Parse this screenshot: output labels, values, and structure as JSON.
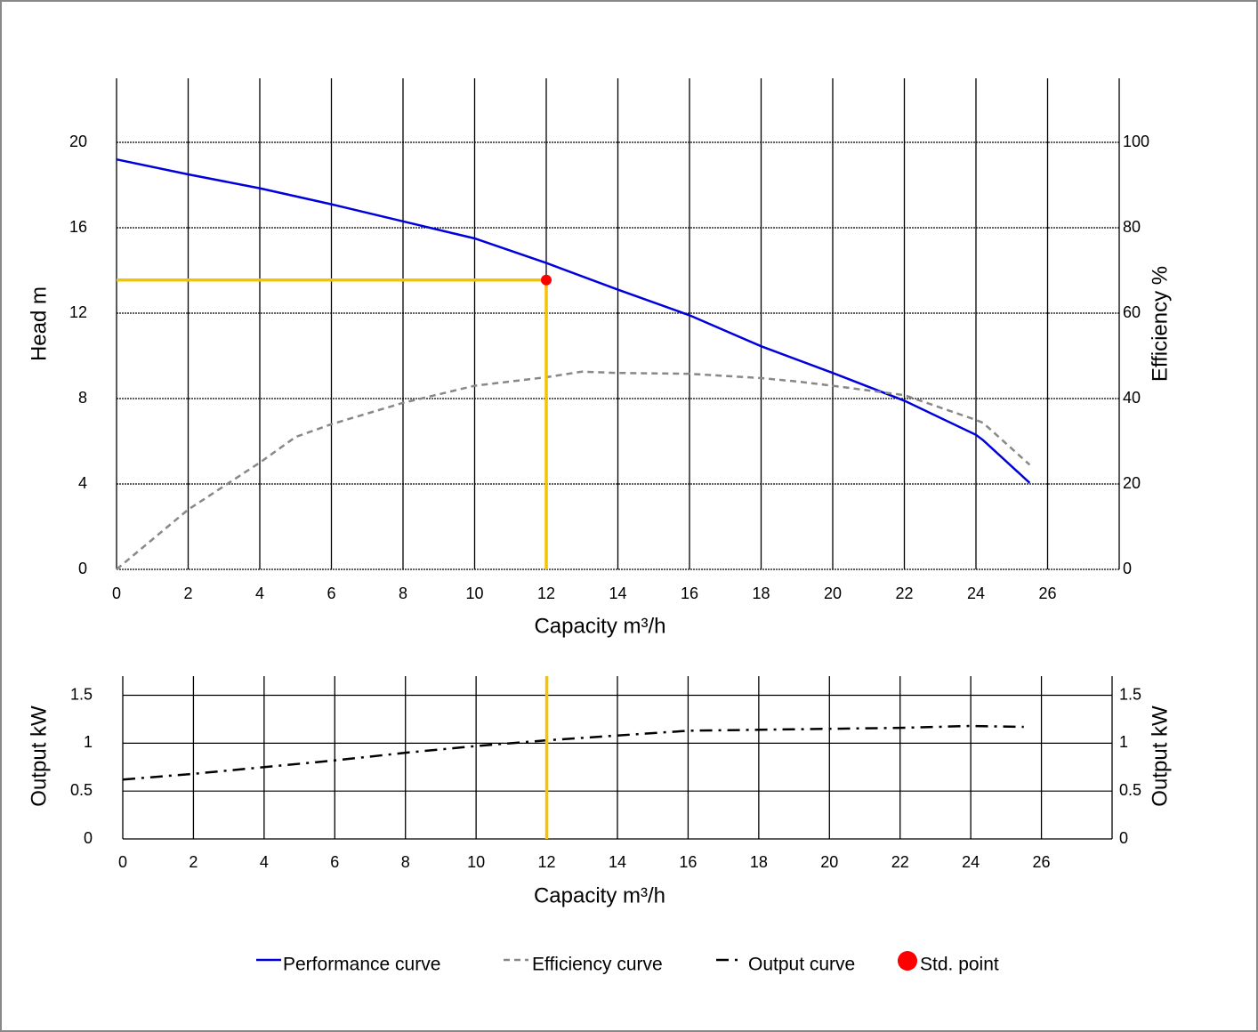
{
  "chart_data": [
    {
      "type": "line",
      "xlabel": "Capacity m³/h",
      "ylabel": "Head m",
      "y2label": "Efficiency %",
      "xlim": [
        0,
        28
      ],
      "xticks": [
        0,
        2,
        4,
        6,
        8,
        10,
        12,
        14,
        16,
        18,
        20,
        22,
        24,
        26
      ],
      "ylim": [
        0,
        23
      ],
      "yticks": [
        0,
        4,
        8,
        12,
        16,
        20
      ],
      "y2lim": [
        0,
        115
      ],
      "y2ticks": [
        0,
        20,
        40,
        60,
        80,
        100
      ],
      "grid": true,
      "series": [
        {
          "name": "Performance curve",
          "color": "#0000dd",
          "style": "solid",
          "x": [
            0,
            2,
            4,
            6,
            8,
            10,
            12,
            14,
            16,
            18,
            20,
            22,
            24,
            24.2,
            25.5
          ],
          "values": [
            19.2,
            18.5,
            17.85,
            17.1,
            16.3,
            15.5,
            14.35,
            13.1,
            11.9,
            10.45,
            9.2,
            7.9,
            6.3,
            6.05,
            4.05
          ]
        },
        {
          "name": "Efficiency curve",
          "color": "#888888",
          "style": "dashed",
          "axis": "y2",
          "x": [
            0,
            2,
            4,
            5,
            6,
            8,
            10,
            12,
            13,
            14,
            16,
            18,
            19,
            20,
            22,
            24,
            24.2,
            25.5
          ],
          "values": [
            0,
            14,
            25,
            31,
            34,
            39,
            43,
            45,
            46.3,
            46,
            45.8,
            44.8,
            44,
            43,
            40.8,
            35,
            34.3,
            24.5
          ]
        },
        {
          "name": "Std. point",
          "color": "#ff0000",
          "style": "marker",
          "guide_color": "#f5c400",
          "x": [
            12
          ],
          "values": [
            13.55
          ]
        }
      ]
    },
    {
      "type": "line",
      "xlabel": "Capacity m³/h",
      "ylabel": "Output kW",
      "y2label": "Output kW",
      "xlim": [
        0,
        28
      ],
      "xticks": [
        0,
        2,
        4,
        6,
        8,
        10,
        12,
        14,
        16,
        18,
        20,
        22,
        24,
        26
      ],
      "ylim": [
        0,
        1.7
      ],
      "yticks": [
        0,
        0.5,
        1,
        1.5
      ],
      "y2lim": [
        0,
        1.7
      ],
      "y2ticks": [
        0,
        0.5,
        1,
        1.5
      ],
      "grid": true,
      "series": [
        {
          "name": "Output curve",
          "color": "#000000",
          "style": "dashdot",
          "x": [
            0,
            2,
            4,
            6,
            8,
            10,
            12,
            14,
            16,
            18,
            20,
            22,
            24,
            25.5
          ],
          "values": [
            0.62,
            0.68,
            0.75,
            0.82,
            0.9,
            0.97,
            1.03,
            1.08,
            1.13,
            1.14,
            1.15,
            1.16,
            1.18,
            1.17
          ]
        }
      ]
    }
  ]
}
